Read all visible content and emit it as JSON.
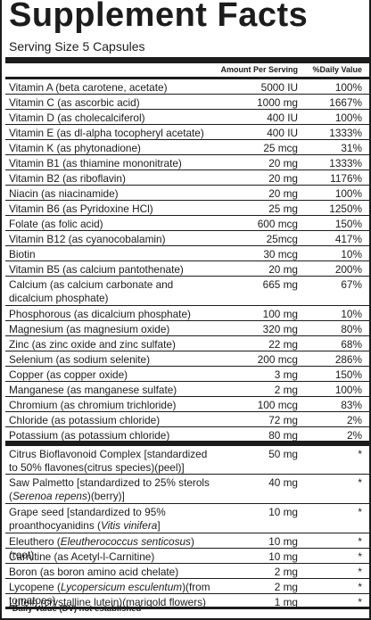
{
  "header": {
    "title": "Supplement Facts",
    "serving_size": "Serving Size 5 Capsules",
    "col_amount": "Amount Per Serving",
    "col_dv": "%Daily Value"
  },
  "nutrients": [
    {
      "parts": [
        {
          "t": "Vitamin A (beta carotene, acetate)"
        }
      ],
      "amount": "5000 IU",
      "dv": "100%"
    },
    {
      "parts": [
        {
          "t": "Vitamin C (as ascorbic acid)"
        }
      ],
      "amount": "1000 mg",
      "dv": "1667%"
    },
    {
      "parts": [
        {
          "t": "Vitamin D (as cholecalciferol)"
        }
      ],
      "amount": "400 IU",
      "dv": "100%"
    },
    {
      "parts": [
        {
          "t": "Vitamin E (as dl-alpha tocopheryl acetate)"
        }
      ],
      "amount": "400 IU",
      "dv": "1333%"
    },
    {
      "parts": [
        {
          "t": "Vitamin K (as phytonadione)"
        }
      ],
      "amount": "25 mcg",
      "dv": "31%"
    },
    {
      "parts": [
        {
          "t": "Vitamin B1 (as thiamine mononitrate)"
        }
      ],
      "amount": "20 mg",
      "dv": "1333%"
    },
    {
      "parts": [
        {
          "t": "Vitamin B2 (as riboflavin)"
        }
      ],
      "amount": "20 mg",
      "dv": "1176%"
    },
    {
      "parts": [
        {
          "t": "Niacin (as niacinamide)"
        }
      ],
      "amount": "20 mg",
      "dv": "100%"
    },
    {
      "parts": [
        {
          "t": "Vitamin B6 (as Pyridoxine HCl)"
        }
      ],
      "amount": "25 mg",
      "dv": "1250%"
    },
    {
      "parts": [
        {
          "t": "Folate (as folic acid)"
        }
      ],
      "amount": "600 mcg",
      "dv": "150%"
    },
    {
      "parts": [
        {
          "t": "Vitamin B12 (as cyanocobalamin)"
        }
      ],
      "amount": "25mcg",
      "dv": "417%"
    },
    {
      "parts": [
        {
          "t": "Biotin"
        }
      ],
      "amount": "30 mcg",
      "dv": "10%"
    },
    {
      "parts": [
        {
          "t": "Vitamin B5 (as calcium pantothenate)"
        }
      ],
      "amount": "20 mg",
      "dv": "200%"
    },
    {
      "parts": [
        {
          "t": "Calcium (as calcium carbonate and dicalcium phosphate)"
        }
      ],
      "amount": "665 mg",
      "dv": "67%"
    },
    {
      "parts": [
        {
          "t": "Phosphorous (as dicalcium phosphate)"
        }
      ],
      "amount": "100 mg",
      "dv": "10%"
    },
    {
      "parts": [
        {
          "t": "Magnesium (as magnesium oxide)"
        }
      ],
      "amount": "320 mg",
      "dv": "80%"
    },
    {
      "parts": [
        {
          "t": "Zinc (as zinc oxide and zinc sulfate)"
        }
      ],
      "amount": "22 mg",
      "dv": "68%"
    },
    {
      "parts": [
        {
          "t": "Selenium (as sodium selenite)"
        }
      ],
      "amount": "200 mcg",
      "dv": "286%"
    },
    {
      "parts": [
        {
          "t": "Copper (as copper oxide)"
        }
      ],
      "amount": "3 mg",
      "dv": "150%"
    },
    {
      "parts": [
        {
          "t": "Manganese (as manganese sulfate)"
        }
      ],
      "amount": "2 mg",
      "dv": "100%"
    },
    {
      "parts": [
        {
          "t": "Chromium (as chromium trichloride)"
        }
      ],
      "amount": "100 mcg",
      "dv": "83%"
    },
    {
      "parts": [
        {
          "t": "Chloride (as potassium chloride)"
        }
      ],
      "amount": "72 mg",
      "dv": "2%"
    },
    {
      "parts": [
        {
          "t": "Potassium (as potassium chloride)"
        }
      ],
      "amount": "80 mg",
      "dv": "2%"
    },
    {
      "parts": [
        {
          "t": "Citrus Bioflavonoid Complex [standardized to 50% flavones(citrus species)(peel)]"
        }
      ],
      "amount": "50 mg",
      "dv": "*"
    },
    {
      "parts": [
        {
          "t": "Saw Palmetto [standardized to 25% sterols ("
        },
        {
          "t": "Serenoa repens",
          "i": true
        },
        {
          "t": ")(berry)]"
        }
      ],
      "amount": "40 mg",
      "dv": "*"
    },
    {
      "parts": [
        {
          "t": "Grape seed [standardized to 95% proanthocyanidins ("
        },
        {
          "t": "Vitis vinifera",
          "i": true
        },
        {
          "t": "]"
        }
      ],
      "amount": "10 mg",
      "dv": "*"
    },
    {
      "parts": [
        {
          "t": "Eleuthero ("
        },
        {
          "t": "Eleutherococcus senticosus",
          "i": true
        },
        {
          "t": ")(root)"
        }
      ],
      "amount": "10 mg",
      "dv": "*"
    },
    {
      "parts": [
        {
          "t": "Carnitine (as Acetyl-l-Carnitine)"
        }
      ],
      "amount": "10 mg",
      "dv": "*"
    },
    {
      "parts": [
        {
          "t": "Boron (as boron amino acid chelate)"
        }
      ],
      "amount": "2 mg",
      "dv": "*"
    },
    {
      "parts": [
        {
          "t": "Lycopene ("
        },
        {
          "t": "Lycopersicum esculentum",
          "i": true
        },
        {
          "t": ")(from tomatoes)"
        }
      ],
      "amount": "2 mg",
      "dv": "*"
    },
    {
      "parts": [
        {
          "t": "Lutein (crystalline lutein)(marigold flowers)"
        }
      ],
      "amount": "1 mg",
      "dv": "*"
    }
  ],
  "footnote": "*Daily Value (DV) not established"
}
